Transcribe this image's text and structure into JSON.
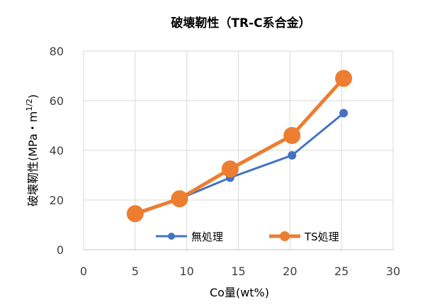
{
  "chart_data": {
    "type": "line",
    "title": "破壊靭性（TR-C系合金）",
    "xlabel": "Co量(wt%)",
    "ylabel": "破壊靭性(MPa・m",
    "ylabel_superscript": "1/2",
    "ylabel_suffix": ")",
    "xlim": [
      0,
      30
    ],
    "ylim": [
      0,
      80
    ],
    "x_ticks": [
      "0",
      "5",
      "10",
      "15",
      "20",
      "25",
      "30"
    ],
    "y_ticks": [
      "0",
      "20",
      "40",
      "60",
      "80"
    ],
    "grid": true,
    "legend_position": "bottom-center inside plot",
    "series": [
      {
        "name": "無処理",
        "color": "#4472C4",
        "points": [
          [
            5,
            14
          ],
          [
            9.3,
            20.5
          ],
          [
            14.2,
            29
          ],
          [
            20.2,
            38
          ],
          [
            25.2,
            55
          ]
        ]
      },
      {
        "name": "TS処理",
        "color": "#ED7D31",
        "points": [
          [
            5,
            14.5
          ],
          [
            9.3,
            20.5
          ],
          [
            14.2,
            32.5
          ],
          [
            20.2,
            46
          ],
          [
            25.2,
            69
          ]
        ]
      }
    ]
  }
}
